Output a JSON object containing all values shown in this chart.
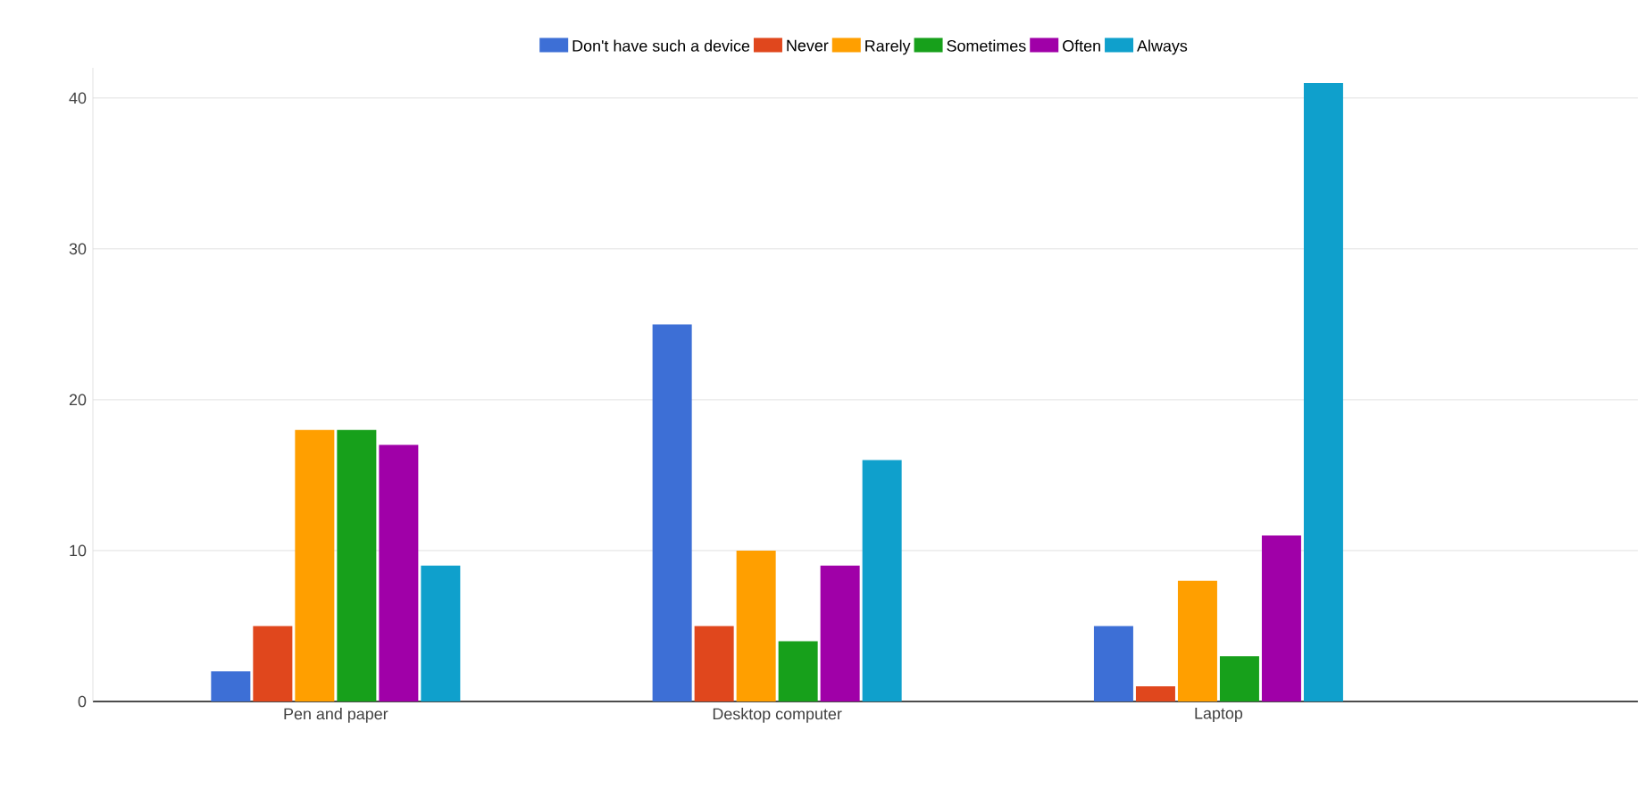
{
  "chart_data": {
    "type": "bar",
    "categories": [
      "Pen and paper",
      "Desktop computer",
      "Laptop"
    ],
    "series": [
      {
        "name": "Don't have such a device",
        "color": "#3d6fd6",
        "values": [
          2,
          25,
          5
        ]
      },
      {
        "name": "Never",
        "color": "#e0471d",
        "values": [
          5,
          5,
          1
        ]
      },
      {
        "name": "Rarely",
        "color": "#ff9f00",
        "values": [
          18,
          10,
          8
        ]
      },
      {
        "name": "Sometimes",
        "color": "#17a01b",
        "values": [
          18,
          4,
          3
        ]
      },
      {
        "name": "Often",
        "color": "#a000a8",
        "values": [
          17,
          9,
          11
        ]
      },
      {
        "name": "Always",
        "color": "#0fa0cc",
        "values": [
          9,
          16,
          41
        ]
      }
    ],
    "ylim": [
      0,
      42
    ],
    "yticks": [
      0,
      10,
      20,
      30,
      40
    ],
    "grid": "y",
    "legend": "top"
  }
}
